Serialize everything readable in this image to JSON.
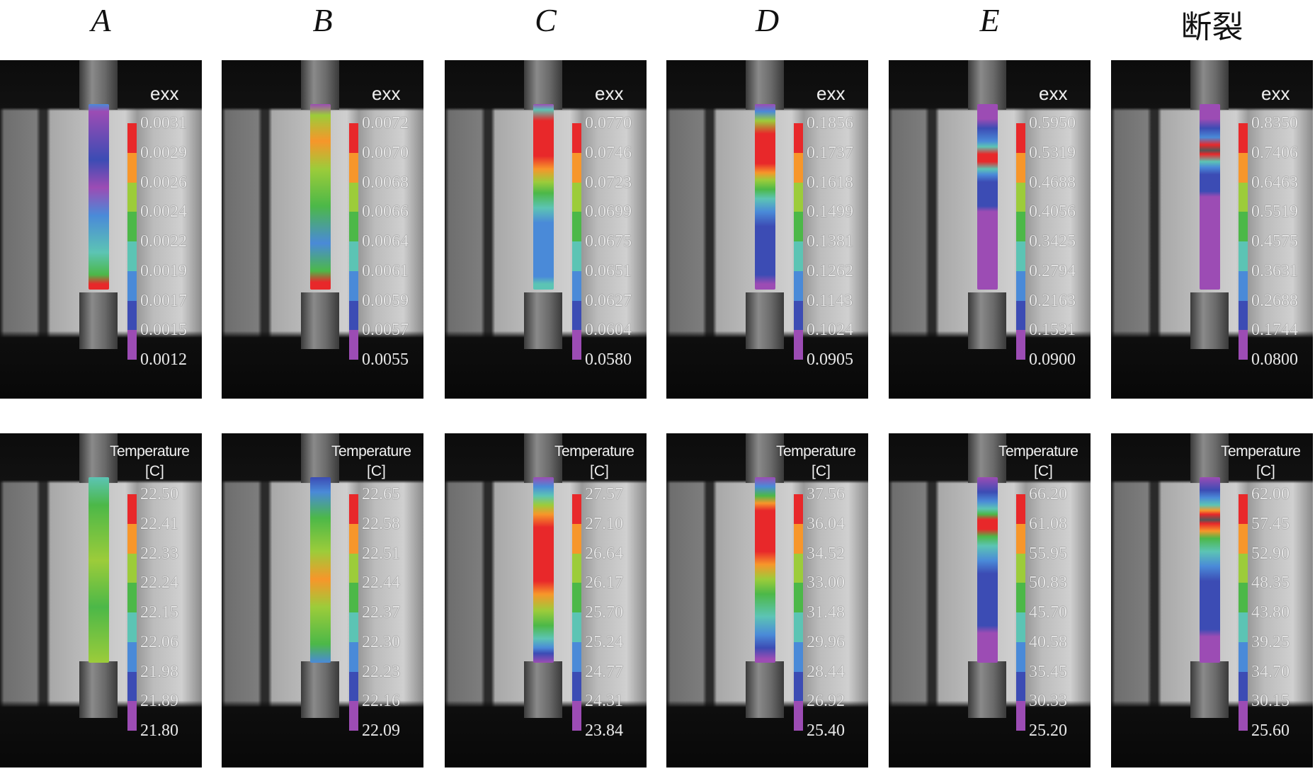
{
  "colorbar_colors": [
    "#e8282a",
    "#f7962a",
    "#9ccc3a",
    "#4cb848",
    "#5cc4b4",
    "#4a8ad8",
    "#3c4cb4",
    "#9c4cb4"
  ],
  "columns": [
    {
      "title": "A",
      "strain": {
        "label": "exx",
        "ticks": [
          "0.0031",
          "0.0029",
          "0.0026",
          "0.0024",
          "0.0022",
          "0.0019",
          "0.0017",
          "0.0015",
          "0.0012"
        ]
      },
      "temperature": {
        "label": "Temperature",
        "unit": "[C]",
        "ticks": [
          "22.50",
          "22.41",
          "22.33",
          "22.24",
          "22.15",
          "22.06",
          "21.98",
          "21.89",
          "21.80"
        ]
      }
    },
    {
      "title": "B",
      "strain": {
        "label": "exx",
        "ticks": [
          "0.0072",
          "0.0070",
          "0.0068",
          "0.0066",
          "0.0064",
          "0.0061",
          "0.0059",
          "0.0057",
          "0.0055"
        ]
      },
      "temperature": {
        "label": "Temperature",
        "unit": "[C]",
        "ticks": [
          "22.65",
          "22.58",
          "22.51",
          "22.44",
          "22.37",
          "22.30",
          "22.23",
          "22.16",
          "22.09"
        ]
      }
    },
    {
      "title": "C",
      "strain": {
        "label": "exx",
        "ticks": [
          "0.0770",
          "0.0746",
          "0.0723",
          "0.0699",
          "0.0675",
          "0.0651",
          "0.0627",
          "0.0604",
          "0.0580"
        ]
      },
      "temperature": {
        "label": "Temperature",
        "unit": "[C]",
        "ticks": [
          "27.57",
          "27.10",
          "26.64",
          "26.17",
          "25.70",
          "25.24",
          "24.77",
          "24.31",
          "23.84"
        ]
      }
    },
    {
      "title": "D",
      "strain": {
        "label": "exx",
        "ticks": [
          "0.1856",
          "0.1737",
          "0.1618",
          "0.1499",
          "0.1381",
          "0.1262",
          "0.1143",
          "0.1024",
          "0.0905"
        ]
      },
      "temperature": {
        "label": "Temperature",
        "unit": "[C]",
        "ticks": [
          "37.56",
          "36.04",
          "34.52",
          "33.00",
          "31.48",
          "29.96",
          "28.44",
          "26.92",
          "25.40"
        ]
      }
    },
    {
      "title": "E",
      "strain": {
        "label": "exx",
        "ticks": [
          "0.5950",
          "0.5319",
          "0.4688",
          "0.4056",
          "0.3425",
          "0.2794",
          "0.2163",
          "0.1531",
          "0.0900"
        ]
      },
      "temperature": {
        "label": "Temperature",
        "unit": "[C]",
        "ticks": [
          "66.20",
          "61.08",
          "55.95",
          "50.83",
          "45.70",
          "40.58",
          "35.45",
          "30.33",
          "25.20"
        ]
      }
    },
    {
      "title": "断裂",
      "strain": {
        "label": "exx",
        "ticks": [
          "0.8350",
          "0.7406",
          "0.6463",
          "0.5519",
          "0.4575",
          "0.3631",
          "0.2688",
          "0.1744",
          "0.0800"
        ]
      },
      "temperature": {
        "label": "Temperature",
        "unit": "[C]",
        "ticks": [
          "62.00",
          "57.45",
          "52.90",
          "48.35",
          "43.80",
          "39.25",
          "34.70",
          "30.15",
          "25.60"
        ]
      }
    }
  ]
}
